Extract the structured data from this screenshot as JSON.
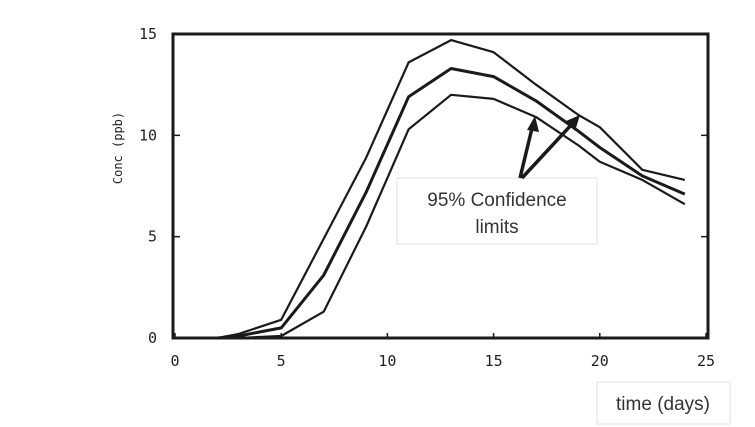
{
  "chart_data": {
    "type": "line",
    "title": "",
    "xlabel": "time (days)",
    "ylabel": "Conc (ppb)",
    "xlim": [
      0,
      25
    ],
    "ylim": [
      0,
      15
    ],
    "xticks": [
      "0",
      "5",
      "10",
      "15",
      "20",
      "25"
    ],
    "yticks": [
      "0",
      "5",
      "10",
      "15"
    ],
    "grid": false,
    "x": [
      0,
      1,
      2,
      3,
      5,
      7,
      9,
      11,
      13,
      15,
      17,
      19,
      20,
      22,
      24
    ],
    "series": [
      {
        "values": [
          0,
          0,
          0,
          0.2,
          0.9,
          4.9,
          8.9,
          13.6,
          14.7,
          14.1,
          12.5,
          11.0,
          10.4,
          8.3,
          7.8
        ]
      },
      {
        "values": [
          0,
          0,
          0,
          0.1,
          0.5,
          3.1,
          7.2,
          11.9,
          13.3,
          12.9,
          11.7,
          10.2,
          9.4,
          8.0,
          7.1
        ]
      },
      {
        "values": [
          0,
          0,
          0,
          0,
          0.1,
          1.3,
          5.5,
          10.3,
          12.0,
          11.8,
          10.9,
          9.5,
          8.7,
          7.8,
          6.6
        ]
      }
    ],
    "annotation": {
      "lines": [
        "95% Confidence",
        "limits"
      ]
    },
    "line_color": "#1a1a1a",
    "frame_color": "#1a1a1a"
  }
}
